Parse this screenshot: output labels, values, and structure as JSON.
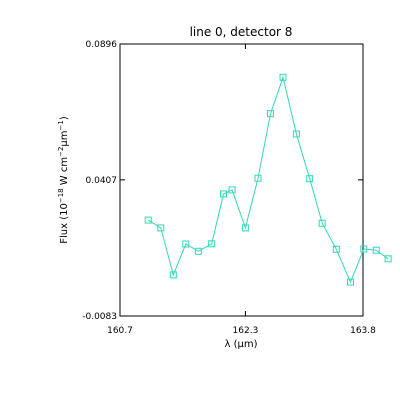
{
  "chart_data": {
    "type": "line",
    "title": "line 0, detector 8",
    "xlabel": "λ (μm)",
    "ylabel": "Flux (10−18 W cm−2μm−1)",
    "ylabel_parts": {
      "prefix": "Flux (10",
      "exp1": "−18",
      "mid": " W cm",
      "exp2": "−2",
      "unit": "μm",
      "exp3": "−1",
      "suffix": ")"
    },
    "xlim": [
      160.7,
      163.8
    ],
    "ylim": [
      -0.0083,
      0.0896
    ],
    "xticks": [
      160.7,
      162.3,
      163.8
    ],
    "xtick_labels": [
      "160.7",
      "162.3",
      "163.8"
    ],
    "yticks": [
      -0.0083,
      0.0407,
      0.0896
    ],
    "ytick_labels": [
      "-0.0083",
      "0.0407",
      "0.0896"
    ],
    "grid": false,
    "marker": "square",
    "color": "#2fd9b8",
    "series": [
      {
        "x": [
          161.06,
          161.22,
          161.38,
          161.54,
          161.7,
          161.87,
          162.02,
          162.13,
          162.3,
          162.46,
          162.62,
          162.78,
          162.95,
          163.12,
          163.28,
          163.46,
          163.64,
          163.81,
          163.97,
          164.12
        ],
        "y": [
          0.0262,
          0.0234,
          0.0065,
          0.0176,
          0.015,
          0.0177,
          0.0356,
          0.0371,
          0.0234,
          0.0413,
          0.0645,
          0.0776,
          0.0572,
          0.0411,
          0.0251,
          0.0157,
          0.0039,
          0.0158,
          0.0154,
          0.0123
        ]
      }
    ]
  }
}
